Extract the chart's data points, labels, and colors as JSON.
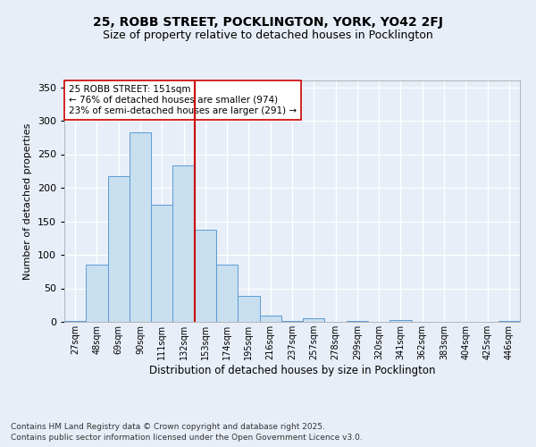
{
  "title": "25, ROBB STREET, POCKLINGTON, YORK, YO42 2FJ",
  "subtitle": "Size of property relative to detached houses in Pocklington",
  "xlabel": "Distribution of detached houses by size in Pocklington",
  "ylabel": "Number of detached properties",
  "bin_labels": [
    "27sqm",
    "48sqm",
    "69sqm",
    "90sqm",
    "111sqm",
    "132sqm",
    "153sqm",
    "174sqm",
    "195sqm",
    "216sqm",
    "237sqm",
    "257sqm",
    "278sqm",
    "299sqm",
    "320sqm",
    "341sqm",
    "362sqm",
    "383sqm",
    "404sqm",
    "425sqm",
    "446sqm"
  ],
  "bar_heights": [
    2,
    86,
    217,
    283,
    175,
    233,
    137,
    85,
    39,
    10,
    2,
    5,
    0,
    1,
    0,
    3,
    0,
    0,
    0,
    0,
    1
  ],
  "bar_color": "#c8dff0",
  "bar_edge_color": "#5b9bd5",
  "vline_x": 6,
  "vline_color": "#cc0000",
  "annotation_text": "25 ROBB STREET: 151sqm\n← 76% of detached houses are smaller (974)\n23% of semi-detached houses are larger (291) →",
  "annotation_box_color": "#ffffff",
  "annotation_box_edge": "#cc0000",
  "ylim": [
    0,
    360
  ],
  "yticks": [
    0,
    50,
    100,
    150,
    200,
    250,
    300,
    350
  ],
  "footer_line1": "Contains HM Land Registry data © Crown copyright and database right 2025.",
  "footer_line2": "Contains public sector information licensed under the Open Government Licence v3.0.",
  "bg_color": "#e8eef8",
  "plot_bg_color": "#e8eef8",
  "grid_color": "#ffffff",
  "title_fontsize": 10,
  "subtitle_fontsize": 9
}
